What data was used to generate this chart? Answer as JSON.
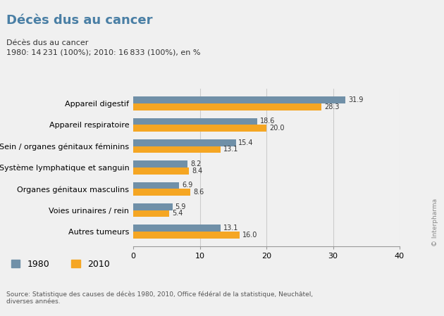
{
  "title": "Décès dus au cancer",
  "subtitle_line1": "Décès dus au cancer",
  "subtitle_line2": "1980: 14 231 (100%); 2010: 16 833 (100%), en %",
  "categories": [
    "Appareil digestif",
    "Appareil respiratoire",
    "Sein / organes génitaux féminins",
    "Système lymphatique et sanguin",
    "Organes génitaux masculins",
    "Voies urinaires / rein",
    "Autres tumeurs"
  ],
  "values_1980": [
    31.9,
    18.6,
    15.4,
    8.2,
    6.9,
    5.9,
    13.1
  ],
  "values_2010": [
    28.3,
    20.0,
    13.1,
    8.4,
    8.6,
    5.4,
    16.0
  ],
  "color_1980": "#7090a8",
  "color_2010": "#f5a623",
  "xlim": [
    0,
    40
  ],
  "xticks": [
    0,
    10,
    20,
    30,
    40
  ],
  "source": "Source: Statistique des causes de décès 1980, 2010, Office fédéral de la statistique, Neuchâtel,\ndiverses années.",
  "watermark": "© Interpharma",
  "bar_height": 0.32,
  "background_color": "#f0f0f0",
  "title_color": "#4a7fa5",
  "text_color": "#333333"
}
